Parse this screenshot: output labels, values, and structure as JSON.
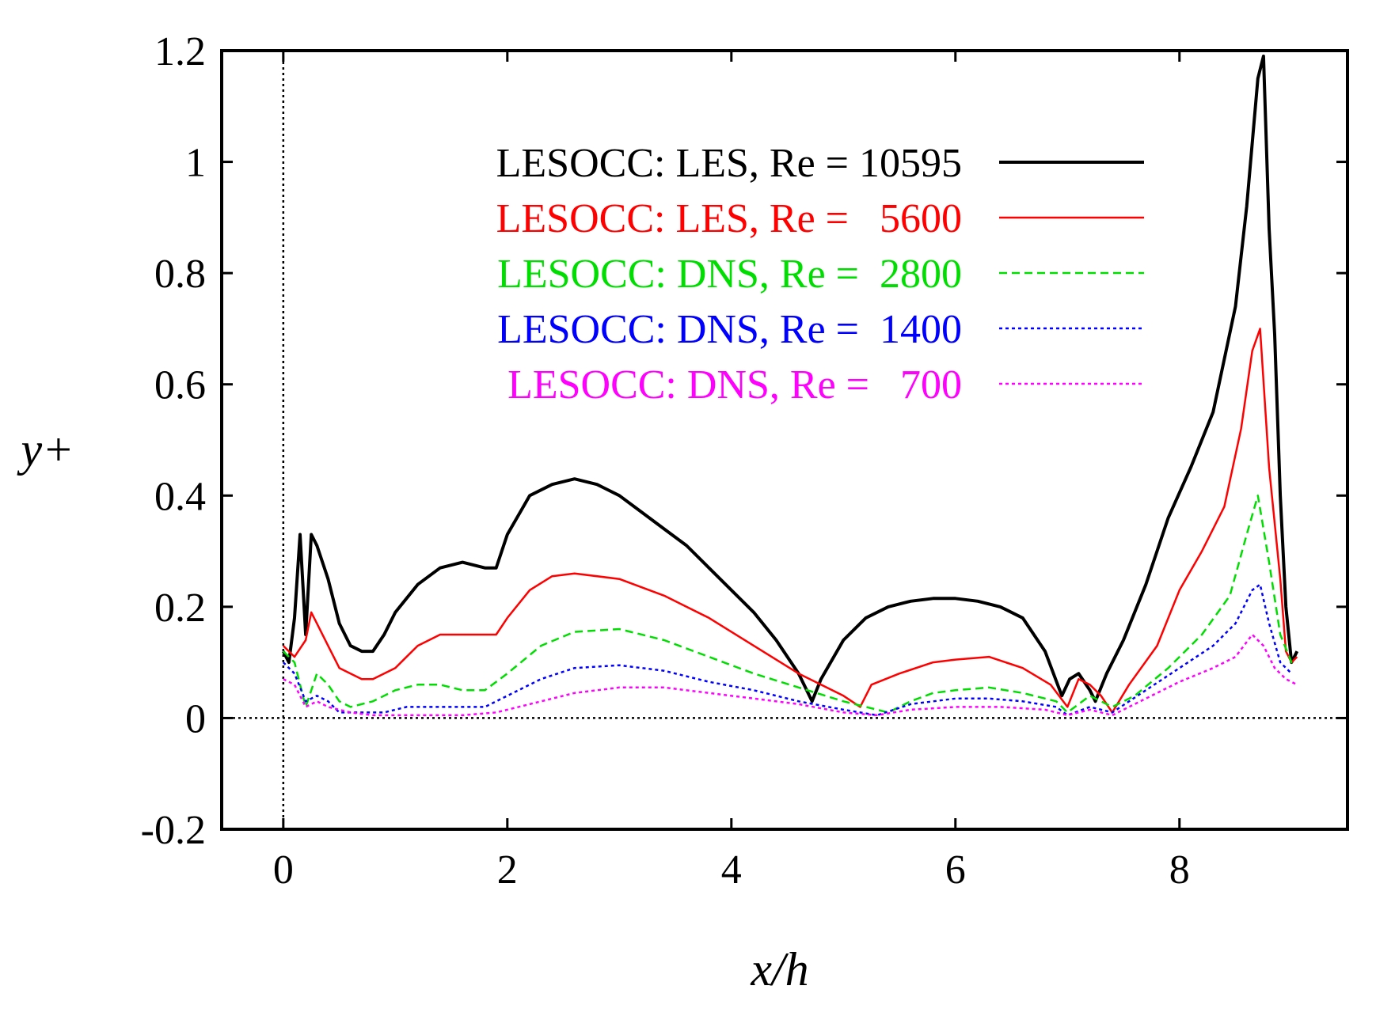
{
  "chart_data": {
    "type": "line",
    "xlabel": "x/h",
    "ylabel": "y+",
    "xlim": [
      -0.55,
      9.5
    ],
    "ylim": [
      -0.2,
      1.2
    ],
    "xticks": [
      "0",
      "2",
      "4",
      "6",
      "8"
    ],
    "xtick_values": [
      0,
      2,
      4,
      6,
      8
    ],
    "yticks": [
      "-0.2",
      "0",
      "0.2",
      "0.4",
      "0.6",
      "0.8",
      "1",
      "1.2"
    ],
    "ytick_values": [
      -0.2,
      0,
      0.2,
      0.4,
      0.6,
      0.8,
      1.0,
      1.2
    ],
    "grid": false,
    "legend_position": "top-left",
    "reference_lines": {
      "x": 0,
      "y": 0
    },
    "series": [
      {
        "name": "LESOCC: LES, Re = 10595",
        "color": "#000000",
        "style": "solid",
        "x": [
          0,
          0.05,
          0.1,
          0.15,
          0.2,
          0.25,
          0.3,
          0.4,
          0.5,
          0.6,
          0.7,
          0.8,
          0.9,
          1.0,
          1.2,
          1.4,
          1.6,
          1.8,
          1.9,
          2.0,
          2.2,
          2.4,
          2.6,
          2.8,
          3.0,
          3.2,
          3.4,
          3.6,
          3.8,
          4.0,
          4.2,
          4.4,
          4.6,
          4.72,
          4.8,
          5.0,
          5.2,
          5.4,
          5.6,
          5.8,
          6.0,
          6.2,
          6.4,
          6.6,
          6.8,
          6.95,
          7.02,
          7.1,
          7.2,
          7.25,
          7.35,
          7.5,
          7.7,
          7.9,
          8.1,
          8.3,
          8.5,
          8.6,
          8.7,
          8.75,
          8.8,
          8.85,
          8.9,
          8.95,
          9.0,
          9.05
        ],
        "y": [
          0.12,
          0.1,
          0.18,
          0.33,
          0.15,
          0.33,
          0.31,
          0.25,
          0.17,
          0.13,
          0.12,
          0.12,
          0.15,
          0.19,
          0.24,
          0.27,
          0.28,
          0.27,
          0.27,
          0.33,
          0.4,
          0.42,
          0.43,
          0.42,
          0.4,
          0.37,
          0.34,
          0.31,
          0.27,
          0.23,
          0.19,
          0.14,
          0.08,
          0.03,
          0.07,
          0.14,
          0.18,
          0.2,
          0.21,
          0.215,
          0.215,
          0.21,
          0.2,
          0.18,
          0.12,
          0.04,
          0.07,
          0.08,
          0.05,
          0.03,
          0.08,
          0.14,
          0.24,
          0.36,
          0.45,
          0.55,
          0.74,
          0.92,
          1.15,
          1.19,
          0.88,
          0.69,
          0.4,
          0.2,
          0.1,
          0.12
        ]
      },
      {
        "name": "LESOCC: LES, Re =   5600",
        "color": "#ff0000",
        "style": "solid",
        "x": [
          0,
          0.1,
          0.2,
          0.25,
          0.3,
          0.4,
          0.5,
          0.6,
          0.7,
          0.8,
          1.0,
          1.2,
          1.4,
          1.6,
          1.8,
          1.9,
          2.0,
          2.2,
          2.4,
          2.6,
          3.0,
          3.4,
          3.8,
          4.2,
          4.6,
          4.8,
          5.0,
          5.15,
          5.25,
          5.5,
          5.8,
          6.0,
          6.3,
          6.6,
          6.85,
          7.0,
          7.1,
          7.2,
          7.3,
          7.4,
          7.55,
          7.8,
          8.0,
          8.2,
          8.4,
          8.55,
          8.65,
          8.72,
          8.8,
          8.9,
          8.95,
          9.0,
          9.05
        ],
        "y": [
          0.13,
          0.11,
          0.14,
          0.19,
          0.17,
          0.13,
          0.09,
          0.08,
          0.07,
          0.07,
          0.09,
          0.13,
          0.15,
          0.15,
          0.15,
          0.15,
          0.18,
          0.23,
          0.255,
          0.26,
          0.25,
          0.22,
          0.18,
          0.13,
          0.08,
          0.06,
          0.04,
          0.02,
          0.06,
          0.08,
          0.1,
          0.105,
          0.11,
          0.09,
          0.06,
          0.02,
          0.07,
          0.06,
          0.04,
          0.01,
          0.06,
          0.13,
          0.23,
          0.3,
          0.38,
          0.52,
          0.66,
          0.7,
          0.45,
          0.25,
          0.12,
          0.1,
          0.11
        ]
      },
      {
        "name": "LESOCC: DNS, Re =  2800",
        "color": "#00dd00",
        "style": "dashed",
        "x": [
          0,
          0.1,
          0.2,
          0.3,
          0.4,
          0.5,
          0.6,
          0.8,
          1.0,
          1.2,
          1.4,
          1.6,
          1.8,
          2.0,
          2.3,
          2.6,
          3.0,
          3.4,
          3.8,
          4.2,
          4.6,
          5.0,
          5.4,
          5.6,
          5.8,
          6.0,
          6.3,
          6.6,
          6.9,
          7.0,
          7.2,
          7.4,
          7.6,
          7.9,
          8.2,
          8.45,
          8.6,
          8.7,
          8.8,
          8.9,
          9.0,
          9.05
        ],
        "y": [
          0.12,
          0.1,
          0.02,
          0.08,
          0.06,
          0.03,
          0.02,
          0.03,
          0.05,
          0.06,
          0.06,
          0.05,
          0.05,
          0.08,
          0.13,
          0.155,
          0.16,
          0.14,
          0.11,
          0.08,
          0.055,
          0.03,
          0.01,
          0.03,
          0.045,
          0.05,
          0.055,
          0.045,
          0.03,
          0.01,
          0.04,
          0.02,
          0.04,
          0.09,
          0.15,
          0.22,
          0.33,
          0.4,
          0.28,
          0.15,
          0.1,
          0.1
        ]
      },
      {
        "name": "LESOCC: DNS, Re =  1400",
        "color": "#0000ff",
        "style": "dotted",
        "x": [
          0,
          0.1,
          0.2,
          0.3,
          0.4,
          0.5,
          0.7,
          0.9,
          1.1,
          1.3,
          1.5,
          1.8,
          2.0,
          2.3,
          2.6,
          3.0,
          3.4,
          3.8,
          4.2,
          4.6,
          5.0,
          5.3,
          5.6,
          6.0,
          6.3,
          6.6,
          6.9,
          7.0,
          7.2,
          7.4,
          7.7,
          8.0,
          8.3,
          8.5,
          8.65,
          8.72,
          8.8,
          8.9,
          9.0
        ],
        "y": [
          0.1,
          0.08,
          0.03,
          0.04,
          0.03,
          0.01,
          0.01,
          0.01,
          0.02,
          0.02,
          0.02,
          0.02,
          0.04,
          0.07,
          0.09,
          0.095,
          0.085,
          0.065,
          0.05,
          0.03,
          0.015,
          0.005,
          0.025,
          0.035,
          0.035,
          0.03,
          0.02,
          0.005,
          0.02,
          0.01,
          0.05,
          0.09,
          0.13,
          0.17,
          0.23,
          0.24,
          0.17,
          0.1,
          0.08
        ]
      },
      {
        "name": "LESOCC: DNS, Re =   700",
        "color": "#ff00ff",
        "style": "dotted",
        "x": [
          0,
          0.1,
          0.2,
          0.3,
          0.4,
          0.6,
          0.8,
          1.0,
          1.3,
          1.6,
          1.9,
          2.2,
          2.6,
          3.0,
          3.4,
          3.8,
          4.2,
          4.6,
          5.0,
          5.3,
          5.6,
          6.0,
          6.4,
          6.8,
          7.0,
          7.2,
          7.4,
          7.7,
          8.0,
          8.3,
          8.5,
          8.65,
          8.75,
          8.85,
          8.95,
          9.05
        ],
        "y": [
          0.07,
          0.06,
          0.02,
          0.03,
          0.02,
          0.01,
          0.005,
          0.005,
          0.005,
          0.005,
          0.01,
          0.025,
          0.045,
          0.055,
          0.055,
          0.045,
          0.035,
          0.025,
          0.01,
          0.005,
          0.015,
          0.02,
          0.02,
          0.015,
          0.005,
          0.015,
          0.005,
          0.035,
          0.065,
          0.09,
          0.11,
          0.15,
          0.13,
          0.09,
          0.07,
          0.06
        ]
      }
    ]
  }
}
